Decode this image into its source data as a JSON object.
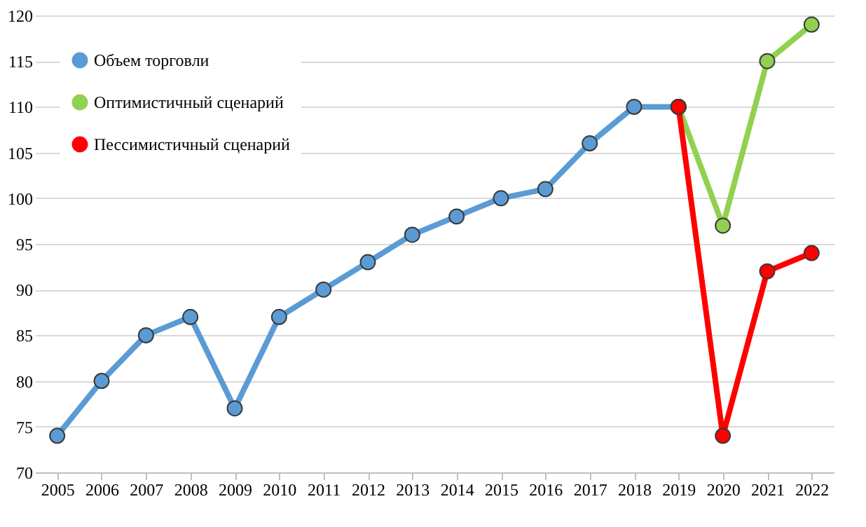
{
  "chart_data": {
    "type": "line",
    "categories": [
      "2005",
      "2006",
      "2007",
      "2008",
      "2009",
      "2010",
      "2011",
      "2012",
      "2013",
      "2014",
      "2015",
      "2016",
      "2017",
      "2018",
      "2019",
      "2020",
      "2021",
      "2022"
    ],
    "series": [
      {
        "name": "Объем торговли",
        "color": "#5b9bd5",
        "values": [
          74,
          80,
          85,
          87,
          77,
          87,
          90,
          93,
          96,
          98,
          100,
          101,
          106,
          110,
          110,
          null,
          null,
          null
        ]
      },
      {
        "name": "Оптимистичный сценарий",
        "color": "#92d050",
        "values": [
          null,
          null,
          null,
          null,
          null,
          null,
          null,
          null,
          null,
          null,
          null,
          null,
          null,
          null,
          110,
          97,
          115,
          119
        ]
      },
      {
        "name": "Пессимистичный сценарий",
        "color": "#ff0000",
        "values": [
          null,
          null,
          null,
          null,
          null,
          null,
          null,
          null,
          null,
          null,
          null,
          null,
          null,
          null,
          110,
          74,
          92,
          94
        ]
      }
    ],
    "ylim": [
      70,
      120
    ],
    "yticks": [
      70,
      75,
      80,
      85,
      90,
      95,
      100,
      105,
      110,
      115,
      120
    ],
    "grid": "y",
    "legend": "top left",
    "marker": "circle",
    "line_style": "solid"
  }
}
